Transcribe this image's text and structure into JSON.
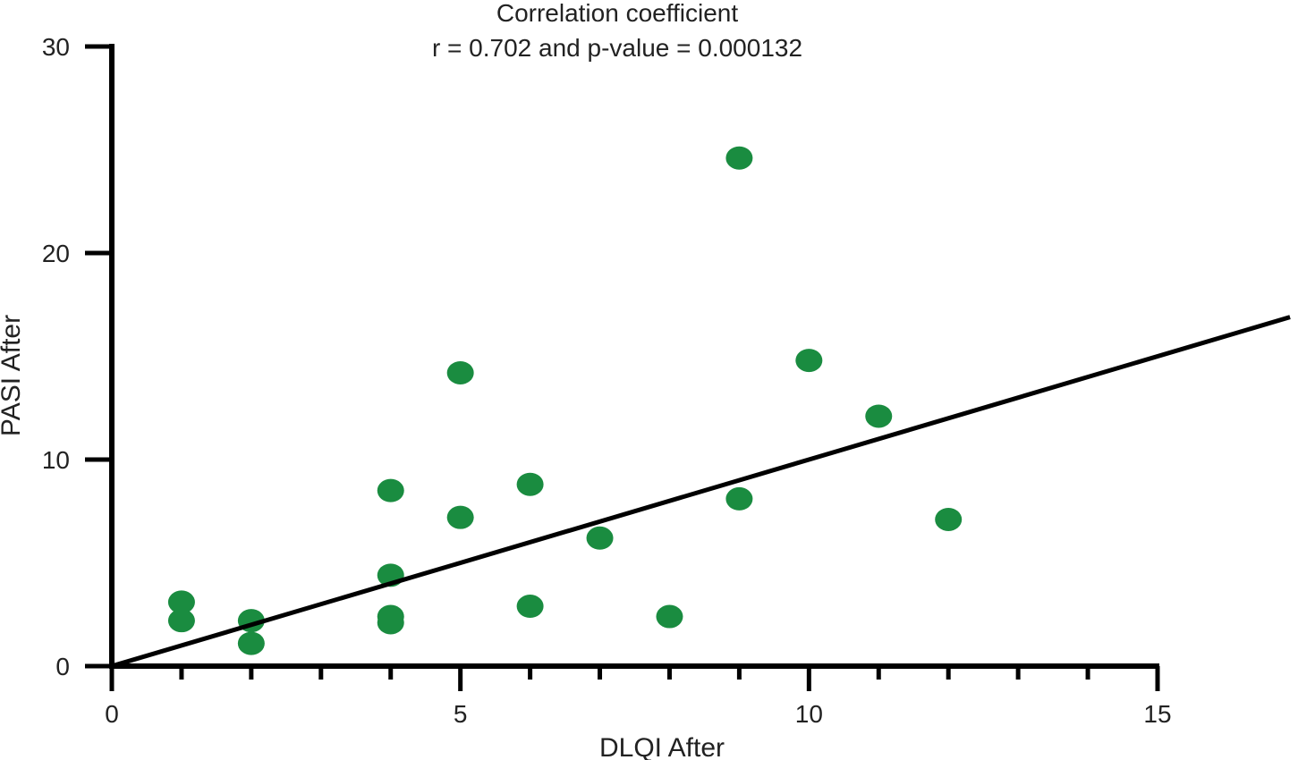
{
  "chart_data": {
    "type": "scatter",
    "title": "Correlation coefficient",
    "subtitle": "r = 0.702 and p-value = 0.000132",
    "xlabel": "DLQI After",
    "ylabel": "PASI After",
    "xlim": [
      0,
      15
    ],
    "ylim": [
      0,
      30
    ],
    "x_ticks": [
      0,
      5,
      10,
      15
    ],
    "y_ticks": [
      0,
      10,
      20,
      30
    ],
    "grid": false,
    "point_color": "#1a8c40",
    "line_color": "#000000",
    "points": [
      {
        "x": 1,
        "y": 3.1
      },
      {
        "x": 1,
        "y": 2.2
      },
      {
        "x": 2,
        "y": 2.2
      },
      {
        "x": 2,
        "y": 1.1
      },
      {
        "x": 4,
        "y": 8.5
      },
      {
        "x": 4,
        "y": 4.4
      },
      {
        "x": 4,
        "y": 2.4
      },
      {
        "x": 4,
        "y": 2.1
      },
      {
        "x": 5,
        "y": 14.2
      },
      {
        "x": 5,
        "y": 7.2
      },
      {
        "x": 6,
        "y": 8.8
      },
      {
        "x": 6,
        "y": 2.9
      },
      {
        "x": 7,
        "y": 6.2
      },
      {
        "x": 8,
        "y": 2.4
      },
      {
        "x": 9,
        "y": 24.6
      },
      {
        "x": 9,
        "y": 8.1
      },
      {
        "x": 10,
        "y": 14.8
      },
      {
        "x": 11,
        "y": 12.1
      },
      {
        "x": 12,
        "y": 7.1
      }
    ],
    "fit_line": {
      "x1": 0,
      "y1": 0,
      "x2": 16.9,
      "y2": 16.9
    }
  }
}
